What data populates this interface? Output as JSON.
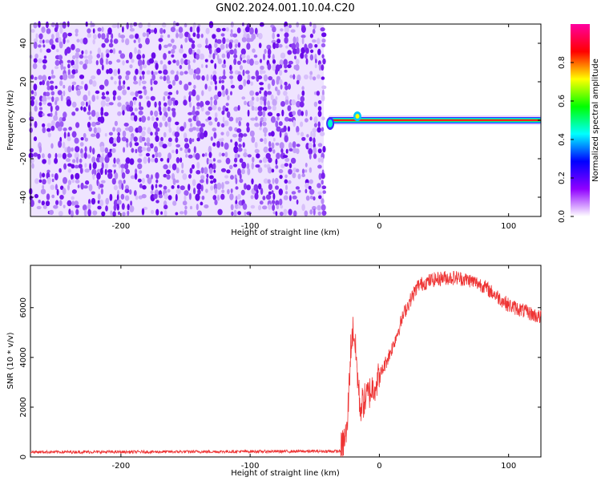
{
  "title": "GN02.2024.001.10.04.C20",
  "chart_data": [
    {
      "type": "heatmap",
      "xlabel": "Height of straight line (km)",
      "ylabel": "Frequency (Hz)",
      "xlim": [
        -270,
        125
      ],
      "ylim": [
        -50,
        50
      ],
      "xticks": [
        -200,
        -100,
        0,
        100
      ],
      "yticks": [
        -40,
        -20,
        0,
        20,
        40
      ],
      "noise_region_x": [
        -270,
        -43
      ],
      "signal_region_x": [
        -43,
        125
      ],
      "signal_frequency_hz": 0,
      "colorbar": {
        "label": "Normalized spectral amplitude",
        "range": [
          0.0,
          1.0
        ],
        "ticks": [
          "0.0",
          "0.2",
          "0.4",
          "0.6",
          "0.8"
        ],
        "colors": [
          "#ffffff",
          "#9000ff",
          "#0000ff",
          "#00ffff",
          "#00ff00",
          "#ffff00",
          "#ff0000",
          "#ff00a0"
        ]
      }
    },
    {
      "type": "line",
      "xlabel": "Height of straight line (km)",
      "ylabel": "SNR (10 * v/v)",
      "xlim": [
        -270,
        125
      ],
      "ylim": [
        0,
        7700
      ],
      "xticks": [
        -200,
        -100,
        0,
        100
      ],
      "yticks": [
        0,
        2000,
        4000,
        6000
      ],
      "color": "#ee3333",
      "series": [
        {
          "x": [
            -270,
            -200,
            -100,
            -30,
            -25,
            -22,
            -20,
            -18,
            -15,
            -10,
            -5,
            0,
            10,
            20,
            30,
            40,
            50,
            60,
            70,
            80,
            90,
            100,
            110,
            125
          ],
          "y": [
            200,
            200,
            220,
            230,
            1000,
            4500,
            5200,
            4000,
            2000,
            2400,
            2800,
            3200,
            4400,
            5900,
            6900,
            7100,
            7200,
            7200,
            7100,
            6900,
            6500,
            6100,
            5900,
            5600
          ]
        }
      ]
    }
  ]
}
